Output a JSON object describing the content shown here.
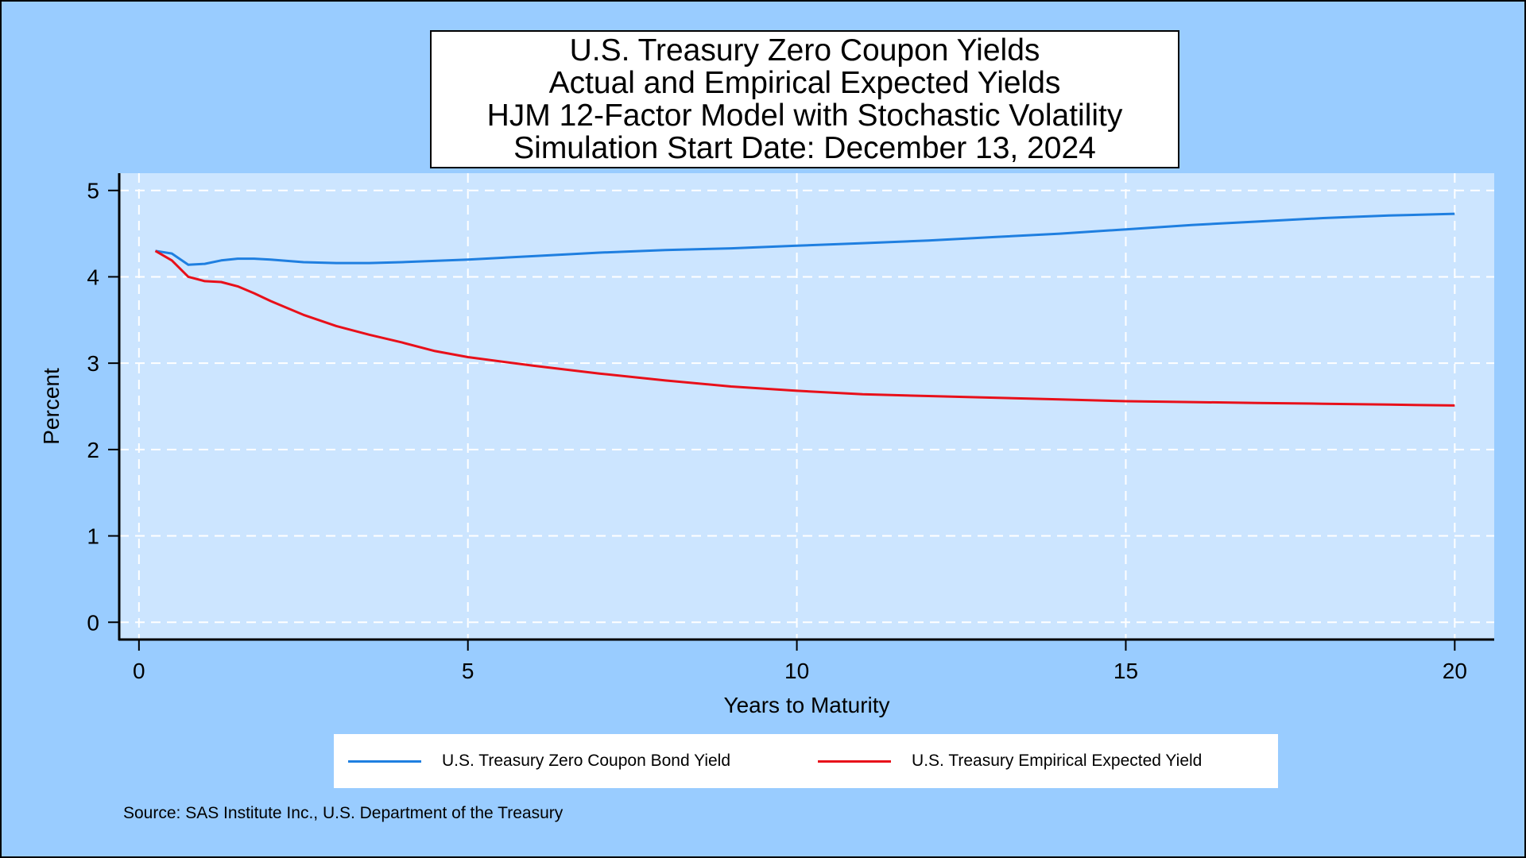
{
  "title_lines": [
    "U.S. Treasury Zero Coupon Yields",
    "Actual and Empirical Expected Yields",
    "HJM 12-Factor Model with Stochastic Volatility",
    "Simulation Start Date: December 13, 2024"
  ],
  "source": "Source: SAS Institute Inc., U.S. Department of the Treasury",
  "colors": {
    "background": "#99ccff",
    "plot_area": "#cce5ff",
    "zero_coupon": "#1f7fe0",
    "expected": "#e8101a",
    "grid": "#ffffff"
  },
  "chart_data": {
    "type": "line",
    "xlabel": "Years to Maturity",
    "ylabel": "Percent",
    "xlim": [
      -0.3,
      20.6
    ],
    "ylim": [
      -0.2,
      5.2
    ],
    "xticks": [
      0,
      5,
      10,
      15,
      20
    ],
    "yticks": [
      0,
      1,
      2,
      3,
      4,
      5
    ],
    "grid": true,
    "legend_position": "bottom",
    "series": [
      {
        "name": "U.S. Treasury Zero Coupon Bond Yield",
        "color": "#1f7fe0",
        "x": [
          0.25,
          0.5,
          0.75,
          1,
          1.25,
          1.5,
          1.75,
          2,
          2.5,
          3,
          3.5,
          4,
          5,
          6,
          7,
          8,
          9,
          10,
          11,
          12,
          13,
          14,
          15,
          16,
          17,
          18,
          19,
          20
        ],
        "y": [
          4.3,
          4.27,
          4.14,
          4.15,
          4.19,
          4.21,
          4.21,
          4.2,
          4.17,
          4.16,
          4.16,
          4.17,
          4.2,
          4.24,
          4.28,
          4.31,
          4.33,
          4.36,
          4.39,
          4.42,
          4.46,
          4.5,
          4.55,
          4.6,
          4.64,
          4.68,
          4.71,
          4.73
        ]
      },
      {
        "name": "U.S. Treasury Empirical Expected Yield",
        "color": "#e8101a",
        "x": [
          0.25,
          0.5,
          0.75,
          1,
          1.25,
          1.5,
          1.75,
          2,
          2.5,
          3,
          3.5,
          4,
          4.5,
          5,
          6,
          7,
          8,
          9,
          10,
          11,
          12,
          13,
          14,
          15,
          16,
          17,
          18,
          19,
          20
        ],
        "y": [
          4.3,
          4.19,
          4.0,
          3.95,
          3.94,
          3.89,
          3.81,
          3.72,
          3.56,
          3.43,
          3.33,
          3.24,
          3.14,
          3.07,
          2.97,
          2.88,
          2.8,
          2.73,
          2.68,
          2.64,
          2.62,
          2.6,
          2.58,
          2.56,
          2.55,
          2.54,
          2.53,
          2.52,
          2.51
        ]
      }
    ]
  }
}
